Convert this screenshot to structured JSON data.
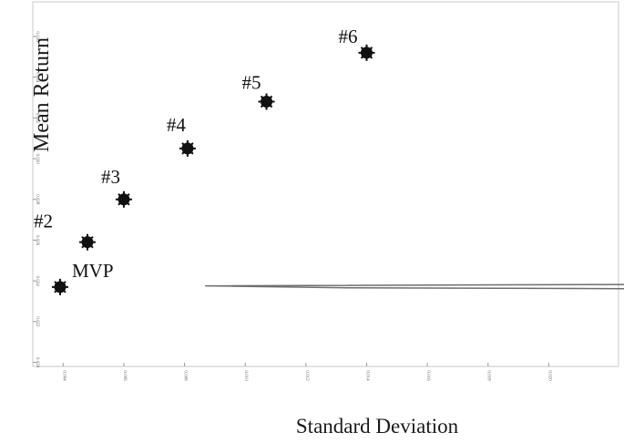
{
  "chart_data": {
    "type": "line",
    "xlabel": "Standard Deviation",
    "ylabel": "Mean Return",
    "xlim": [
      0.003,
      0.0223
    ],
    "ylim": [
      0.0198,
      0.0377
    ],
    "x_ticks": [
      {
        "value": 0.004,
        "label": "0.004"
      },
      {
        "value": 0.006,
        "label": "0.006"
      },
      {
        "value": 0.008,
        "label": "0.008"
      },
      {
        "value": 0.01,
        "label": "0.010"
      },
      {
        "value": 0.012,
        "label": "0.012"
      },
      {
        "value": 0.014,
        "label": "0.014"
      },
      {
        "value": 0.016,
        "label": "0.016"
      },
      {
        "value": 0.018,
        "label": "0.018"
      },
      {
        "value": 0.02,
        "label": "0.020"
      }
    ],
    "y_ticks": [
      {
        "value": 0.02,
        "label": "0.020"
      },
      {
        "value": 0.022,
        "label": "0.022"
      },
      {
        "value": 0.024,
        "label": "0.024"
      },
      {
        "value": 0.026,
        "label": "0.026"
      },
      {
        "value": 0.028,
        "label": "0.028"
      },
      {
        "value": 0.03,
        "label": "0.030"
      },
      {
        "value": 0.032,
        "label": "0.032"
      },
      {
        "value": 0.034,
        "label": "0.034"
      },
      {
        "value": 0.036,
        "label": "0.036"
      }
    ],
    "grid": false,
    "frontier": {
      "mvp_sd": 0.0039,
      "mvp_return": 0.02372,
      "curvature": 2.17e-05,
      "return_range": [
        0.0202,
        0.0375
      ]
    },
    "points": [
      {
        "label": "MVP",
        "x": 0.0039,
        "y": 0.0237
      },
      {
        "label": "#2",
        "x": 0.0048,
        "y": 0.0259
      },
      {
        "label": "#3",
        "x": 0.006,
        "y": 0.028
      },
      {
        "label": "#4",
        "x": 0.0081,
        "y": 0.0305
      },
      {
        "label": "#5",
        "x": 0.0107,
        "y": 0.0328
      },
      {
        "label": "#6",
        "x": 0.014,
        "y": 0.0352
      }
    ]
  }
}
